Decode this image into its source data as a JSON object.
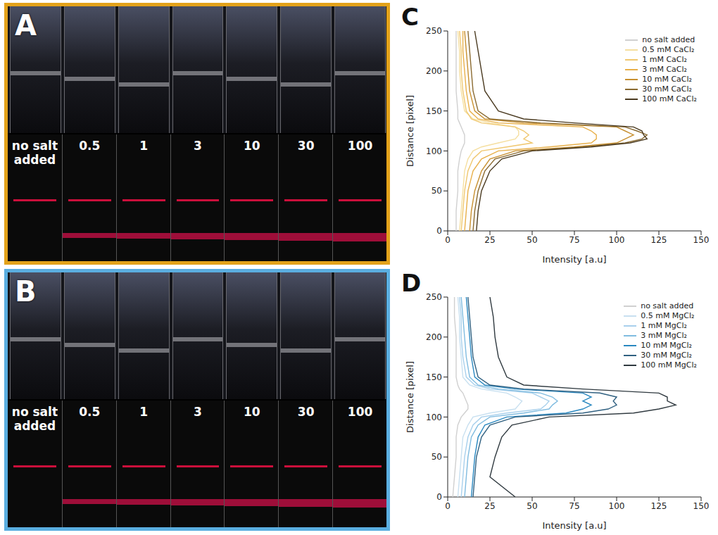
{
  "panels": [
    {
      "panel": "A",
      "labels": [
        "no salt added",
        "0.5",
        "1",
        "3",
        "10",
        "30",
        "100"
      ]
    },
    {
      "panel": "B",
      "labels": [
        "no salt added",
        "0.5",
        "1",
        "3",
        "10",
        "30",
        "100"
      ]
    }
  ],
  "chart_data": [
    {
      "type": "line",
      "panel": "C",
      "x_label": "Intensity [a.u]",
      "y_label": "Distance [pixel]",
      "xlim": [
        0,
        150
      ],
      "xticks": [
        0,
        25,
        50,
        75,
        100,
        125,
        150
      ],
      "ylim": [
        0,
        250
      ],
      "yticks": [
        0,
        50,
        100,
        150,
        200,
        250
      ],
      "grid": false,
      "legend": "upper right",
      "y": [
        0,
        25,
        50,
        75,
        90,
        100,
        105,
        110,
        115,
        120,
        125,
        130,
        135,
        140,
        150,
        175,
        200,
        225,
        250
      ],
      "series": [
        {
          "name": "no salt added",
          "color": "#d0d0d0",
          "values": [
            5,
            5,
            6,
            6,
            7,
            8,
            9,
            10,
            10,
            10,
            9,
            8,
            7,
            6,
            6,
            5,
            5,
            5,
            5
          ]
        },
        {
          "name": "0.5 mM CaCl₂",
          "color": "#f5dfa0",
          "values": [
            7,
            8,
            9,
            10,
            12,
            15,
            20,
            30,
            40,
            42,
            42,
            40,
            25,
            15,
            10,
            8,
            7,
            7,
            6
          ]
        },
        {
          "name": "1 mM CaCl₂",
          "color": "#f0c870",
          "values": [
            8,
            9,
            10,
            12,
            15,
            20,
            35,
            50,
            45,
            48,
            45,
            40,
            20,
            14,
            11,
            9,
            8,
            8,
            7
          ]
        },
        {
          "name": "3 mM CaCl₂",
          "color": "#e8b04a",
          "values": [
            10,
            11,
            12,
            15,
            20,
            30,
            60,
            85,
            88,
            88,
            85,
            80,
            30,
            18,
            13,
            11,
            10,
            9,
            9
          ]
        },
        {
          "name": "10 mM CaCl₂",
          "color": "#c89030",
          "values": [
            13,
            14,
            16,
            20,
            25,
            40,
            75,
            100,
            105,
            110,
            105,
            100,
            45,
            22,
            16,
            13,
            12,
            11,
            10
          ]
        },
        {
          "name": "30 mM CaCl₂",
          "color": "#8a6a30",
          "values": [
            15,
            16,
            18,
            22,
            28,
            45,
            80,
            105,
            115,
            118,
            112,
            105,
            55,
            25,
            18,
            15,
            14,
            13,
            12
          ]
        },
        {
          "name": "100 mM CaCl₂",
          "color": "#4a3a20",
          "values": [
            17,
            18,
            20,
            25,
            32,
            50,
            85,
            108,
            118,
            116,
            115,
            110,
            75,
            45,
            30,
            22,
            20,
            18,
            16
          ]
        }
      ]
    },
    {
      "type": "line",
      "panel": "D",
      "x_label": "Intensity [a.u]",
      "y_label": "Distance [pixel]",
      "xlim": [
        0,
        150
      ],
      "xticks": [
        0,
        25,
        50,
        75,
        100,
        125,
        150
      ],
      "ylim": [
        0,
        250
      ],
      "yticks": [
        0,
        50,
        100,
        150,
        200,
        250
      ],
      "grid": false,
      "legend": "upper right",
      "y": [
        0,
        25,
        50,
        75,
        90,
        100,
        105,
        110,
        115,
        120,
        125,
        130,
        135,
        140,
        150,
        175,
        200,
        225,
        250
      ],
      "series": [
        {
          "name": "no salt added",
          "color": "#d0d0d0",
          "values": [
            3,
            4,
            5,
            5,
            6,
            8,
            10,
            12,
            12,
            11,
            10,
            9,
            7,
            6,
            5,
            5,
            5,
            4,
            4
          ]
        },
        {
          "name": "0.5 mM MgCl₂",
          "color": "#c8e0f0",
          "values": [
            6,
            7,
            8,
            9,
            12,
            15,
            25,
            40,
            42,
            44,
            40,
            35,
            20,
            13,
            9,
            8,
            7,
            7,
            6
          ]
        },
        {
          "name": "1 mM MgCl₂",
          "color": "#a8d0ec",
          "values": [
            8,
            9,
            10,
            12,
            15,
            20,
            35,
            55,
            58,
            60,
            55,
            50,
            25,
            16,
            11,
            9,
            8,
            8,
            7
          ]
        },
        {
          "name": "3 mM MgCl₂",
          "color": "#80bce0",
          "values": [
            10,
            11,
            12,
            14,
            18,
            25,
            45,
            60,
            62,
            65,
            62,
            55,
            30,
            18,
            13,
            11,
            10,
            9,
            8
          ]
        },
        {
          "name": "10 mM MgCl₂",
          "color": "#2a88c0",
          "values": [
            14,
            15,
            16,
            18,
            22,
            35,
            70,
            80,
            85,
            80,
            85,
            80,
            40,
            22,
            16,
            14,
            13,
            12,
            11
          ]
        },
        {
          "name": "30 mM MgCl₂",
          "color": "#306080",
          "values": [
            15,
            16,
            17,
            20,
            25,
            40,
            80,
            95,
            100,
            98,
            100,
            90,
            45,
            25,
            18,
            15,
            14,
            13,
            12
          ]
        },
        {
          "name": "100 mM MgCl₂",
          "color": "#303a40",
          "values": [
            40,
            25,
            28,
            32,
            38,
            60,
            110,
            125,
            135,
            130,
            130,
            125,
            80,
            45,
            35,
            30,
            28,
            27,
            25
          ]
        }
      ]
    }
  ]
}
